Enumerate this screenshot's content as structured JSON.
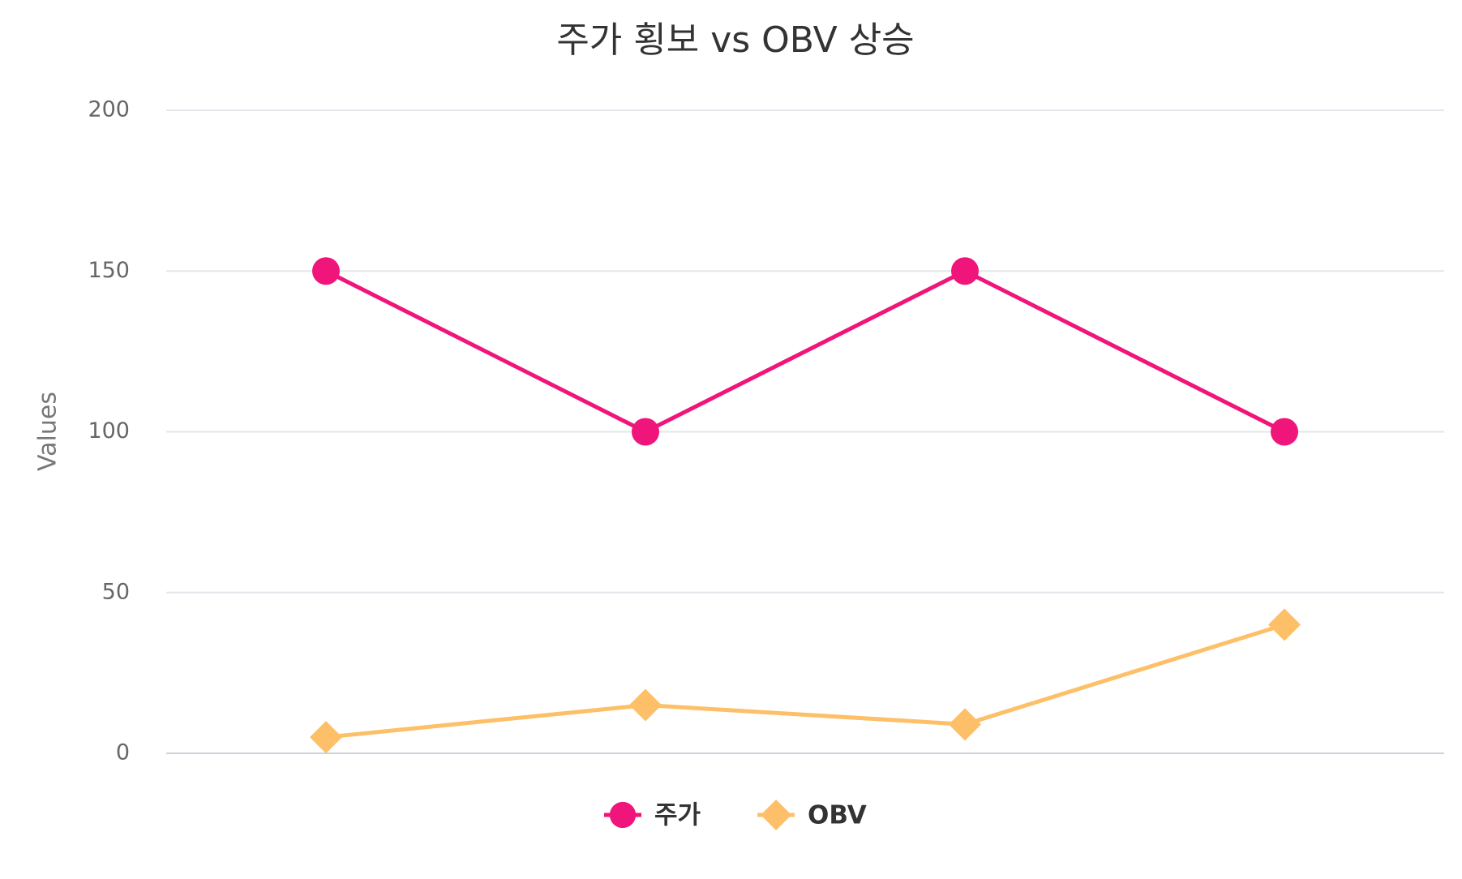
{
  "chart_data": {
    "type": "line",
    "title": "주가 횡보 vs OBV 상승",
    "y_label": "Values",
    "categories": [
      null,
      null,
      null,
      null
    ],
    "series": [
      {
        "name": "주가",
        "color": "#f0157a",
        "marker": "circle",
        "values": [
          150,
          100,
          150,
          100
        ]
      },
      {
        "name": "OBV",
        "color": "#fdbf67",
        "marker": "diamond",
        "values": [
          5,
          15,
          9,
          40
        ]
      }
    ],
    "ylim": [
      0,
      200
    ],
    "yticks": [
      0,
      50,
      100,
      150,
      200
    ],
    "grid": true,
    "legend": "bottom"
  }
}
